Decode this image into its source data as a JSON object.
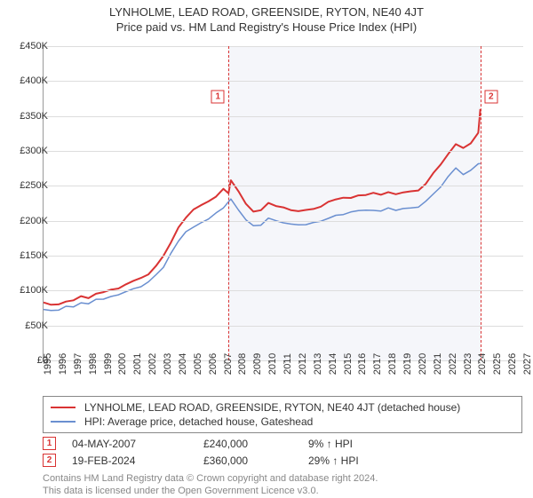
{
  "title": "LYNHOLME, LEAD ROAD, GREENSIDE, RYTON, NE40 4JT",
  "subtitle": "Price paid vs. HM Land Registry's House Price Index (HPI)",
  "chart": {
    "type": "line",
    "x_range": [
      1995,
      2027
    ],
    "y_range": [
      0,
      450000
    ],
    "y_ticks": [
      0,
      50000,
      100000,
      150000,
      200000,
      250000,
      300000,
      350000,
      400000,
      450000
    ],
    "y_labels": [
      "£0",
      "£50K",
      "£100K",
      "£150K",
      "£200K",
      "£250K",
      "£300K",
      "£350K",
      "£400K",
      "£450K"
    ],
    "x_ticks": [
      1995,
      1996,
      1997,
      1998,
      1999,
      2000,
      2001,
      2002,
      2003,
      2004,
      2005,
      2006,
      2007,
      2008,
      2009,
      2010,
      2011,
      2012,
      2013,
      2014,
      2015,
      2016,
      2017,
      2018,
      2019,
      2020,
      2021,
      2022,
      2023,
      2024,
      2025,
      2026,
      2027
    ],
    "grid_color": "#dddddd",
    "background_color": "#ffffff",
    "shade_color": "#e8ecf3",
    "shade_start": 2007.34,
    "shade_end": 2024.14,
    "series": [
      {
        "name": "LYNHOLME, LEAD ROAD, GREENSIDE, RYTON, NE40 4JT (detached house)",
        "color": "#d93333",
        "width": 2,
        "points": [
          [
            1995,
            83000
          ],
          [
            1995.5,
            80000
          ],
          [
            1996,
            80000
          ],
          [
            1996.5,
            85000
          ],
          [
            1997,
            85000
          ],
          [
            1997.5,
            92000
          ],
          [
            1998,
            90000
          ],
          [
            1998.5,
            95000
          ],
          [
            1999,
            97000
          ],
          [
            1999.5,
            102000
          ],
          [
            2000,
            104000
          ],
          [
            2000.5,
            108000
          ],
          [
            2001,
            113000
          ],
          [
            2001.5,
            118000
          ],
          [
            2002,
            124000
          ],
          [
            2002.5,
            135000
          ],
          [
            2003,
            150000
          ],
          [
            2003.5,
            170000
          ],
          [
            2004,
            190000
          ],
          [
            2004.5,
            205000
          ],
          [
            2005,
            215000
          ],
          [
            2005.5,
            222000
          ],
          [
            2006,
            228000
          ],
          [
            2006.5,
            235000
          ],
          [
            2007,
            245000
          ],
          [
            2007.34,
            240000
          ],
          [
            2007.5,
            258000
          ],
          [
            2008,
            242000
          ],
          [
            2008.5,
            225000
          ],
          [
            2009,
            212000
          ],
          [
            2009.5,
            215000
          ],
          [
            2010,
            225000
          ],
          [
            2010.5,
            222000
          ],
          [
            2011,
            218000
          ],
          [
            2011.5,
            216000
          ],
          [
            2012,
            214000
          ],
          [
            2012.5,
            216000
          ],
          [
            2013,
            218000
          ],
          [
            2013.5,
            221000
          ],
          [
            2014,
            226000
          ],
          [
            2014.5,
            230000
          ],
          [
            2015,
            232000
          ],
          [
            2015.5,
            233000
          ],
          [
            2016,
            236000
          ],
          [
            2016.5,
            238000
          ],
          [
            2017,
            239000
          ],
          [
            2017.5,
            238000
          ],
          [
            2018,
            240000
          ],
          [
            2018.5,
            239000
          ],
          [
            2019,
            240000
          ],
          [
            2019.5,
            241000
          ],
          [
            2020,
            244000
          ],
          [
            2020.5,
            252000
          ],
          [
            2021,
            268000
          ],
          [
            2021.5,
            280000
          ],
          [
            2022,
            295000
          ],
          [
            2022.5,
            310000
          ],
          [
            2023,
            305000
          ],
          [
            2023.5,
            312000
          ],
          [
            2024,
            326000
          ],
          [
            2024.14,
            360000
          ]
        ]
      },
      {
        "name": "HPI: Average price, detached house, Gateshead",
        "color": "#6a8fd0",
        "width": 1.5,
        "points": [
          [
            1995,
            73000
          ],
          [
            1995.5,
            72000
          ],
          [
            1996,
            73000
          ],
          [
            1996.5,
            76000
          ],
          [
            1997,
            77000
          ],
          [
            1997.5,
            82000
          ],
          [
            1998,
            82000
          ],
          [
            1998.5,
            86000
          ],
          [
            1999,
            88000
          ],
          [
            1999.5,
            92000
          ],
          [
            2000,
            94000
          ],
          [
            2000.5,
            97000
          ],
          [
            2001,
            102000
          ],
          [
            2001.5,
            106000
          ],
          [
            2002,
            112000
          ],
          [
            2002.5,
            122000
          ],
          [
            2003,
            135000
          ],
          [
            2003.5,
            152000
          ],
          [
            2004,
            170000
          ],
          [
            2004.5,
            183000
          ],
          [
            2005,
            192000
          ],
          [
            2005.5,
            198000
          ],
          [
            2006,
            203000
          ],
          [
            2006.5,
            210000
          ],
          [
            2007,
            218000
          ],
          [
            2007.5,
            230000
          ],
          [
            2008,
            216000
          ],
          [
            2008.5,
            202000
          ],
          [
            2009,
            192000
          ],
          [
            2009.5,
            195000
          ],
          [
            2010,
            203000
          ],
          [
            2010.5,
            200000
          ],
          [
            2011,
            197000
          ],
          [
            2011.5,
            196000
          ],
          [
            2012,
            194000
          ],
          [
            2012.5,
            196000
          ],
          [
            2013,
            198000
          ],
          [
            2013.5,
            200000
          ],
          [
            2014,
            205000
          ],
          [
            2014.5,
            208000
          ],
          [
            2015,
            210000
          ],
          [
            2015.5,
            211000
          ],
          [
            2016,
            213000
          ],
          [
            2016.5,
            215000
          ],
          [
            2017,
            216000
          ],
          [
            2017.5,
            215000
          ],
          [
            2018,
            217000
          ],
          [
            2018.5,
            216000
          ],
          [
            2019,
            217000
          ],
          [
            2019.5,
            218000
          ],
          [
            2020,
            220000
          ],
          [
            2020.5,
            227000
          ],
          [
            2021,
            240000
          ],
          [
            2021.5,
            250000
          ],
          [
            2022,
            262000
          ],
          [
            2022.5,
            275000
          ],
          [
            2023,
            265000
          ],
          [
            2023.5,
            272000
          ],
          [
            2024,
            280000
          ],
          [
            2024.14,
            282000
          ]
        ]
      }
    ],
    "markers": [
      {
        "num": "1",
        "x": 2007.34,
        "label_y": 378000
      },
      {
        "num": "2",
        "x": 2024.14,
        "label_y": 378000
      }
    ]
  },
  "legend": {
    "s1": "LYNHOLME, LEAD ROAD, GREENSIDE, RYTON, NE40 4JT (detached house)",
    "s2": "HPI: Average price, detached house, Gateshead"
  },
  "sales": [
    {
      "num": "1",
      "date": "04-MAY-2007",
      "price": "£240,000",
      "pct": "9% ↑ HPI"
    },
    {
      "num": "2",
      "date": "19-FEB-2024",
      "price": "£360,000",
      "pct": "29% ↑ HPI"
    }
  ],
  "attribution": {
    "l1": "Contains HM Land Registry data © Crown copyright and database right 2024.",
    "l2": "This data is licensed under the Open Government Licence v3.0."
  }
}
